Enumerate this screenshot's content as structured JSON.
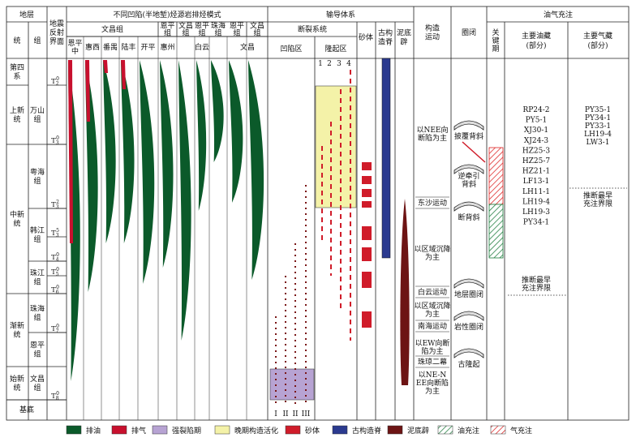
{
  "header": {
    "strata": "地层",
    "seismic": "地震反射界面",
    "source": "不同凹陷(半地堑)烃源岩排烃模式",
    "migration": "输导体系",
    "tectonic": "构造运动",
    "trap": "圈闭",
    "charge": "油气充注",
    "series": "统",
    "formation": "组",
    "fault_system": "断裂系统",
    "sand": "砂体",
    "ridge": "古构造脊",
    "diapir": "泥底辟",
    "sag": "凹陷区",
    "uplift": "隆起区",
    "key": "关键期",
    "oil": "主要油藏(部分)",
    "gas": "主要气藏(部分)"
  },
  "source_groups": [
    "文昌组",
    "恩平组",
    "文昌组",
    "恩平组",
    "珠海组",
    "恩平组",
    "文昌组"
  ],
  "sags": [
    "恩平中",
    "惠西",
    "番禺",
    "陆丰",
    "开平",
    "惠州",
    "白云",
    "文昌"
  ],
  "series": [
    "第四系",
    "上新统",
    "中新统",
    "渐新统",
    "始新统"
  ],
  "formations": [
    "万山组",
    "粤海组",
    "韩江组",
    "珠江组",
    "珠海组",
    "恩平组",
    "文昌组"
  ],
  "basement": "基底",
  "horizons": [
    {
      "base": "T",
      "sub": "2",
      "sup": "0"
    },
    {
      "base": "T",
      "sub": "3",
      "sup": "0"
    },
    {
      "base": "T",
      "sub": "3",
      "sup": "2"
    },
    {
      "base": "T",
      "sub": "3",
      "sup": "5"
    },
    {
      "base": "T",
      "sub": "4",
      "sup": "0"
    },
    {
      "base": "T",
      "sub": "5",
      "sup": "0"
    },
    {
      "base": "T",
      "sub": "6",
      "sup": "0"
    },
    {
      "base": "T",
      "sub": "7",
      "sup": "0"
    },
    {
      "base": "T",
      "sub": "8",
      "sup": "0"
    }
  ],
  "sag_faults": [
    "I",
    "II",
    "II",
    "III"
  ],
  "uplift_faults": [
    "1",
    "2",
    "3",
    "4"
  ],
  "tectonics": [
    "以NEE向断陷为主",
    "东沙运动",
    "以区域沉降为主",
    "白云运动",
    "以区域沉降为主",
    "南海运动",
    "以EW向断陷为主",
    "珠琼二幕",
    "以NE-NEE向断陷为主"
  ],
  "traps": [
    "披覆背斜",
    "逆牵引背斜",
    "断背斜",
    "地层圈闭",
    "岩性圈闭",
    "古隆起"
  ],
  "oil_fields": [
    "RP24-2",
    "PY5-1",
    "XJ30-1",
    "XJ24-3",
    "HZ25-3",
    "HZ25-7",
    "HZ21-1",
    "LF13-1",
    "LH11-1",
    "LH19-4",
    "LH19-3",
    "PY34-1"
  ],
  "gas_fields": [
    "PY35-1",
    "PY34-1",
    "PY33-1",
    "LH19-4",
    "LW3-1"
  ],
  "oil_limit": "推断最早充注界限",
  "gas_limit": "推断最早充注界限",
  "legend": [
    "排油",
    "排气",
    "强裂陷期",
    "晚期构造活化",
    "砂体",
    "古构造脊",
    "泥底辟",
    "油充注",
    "气充注"
  ]
}
